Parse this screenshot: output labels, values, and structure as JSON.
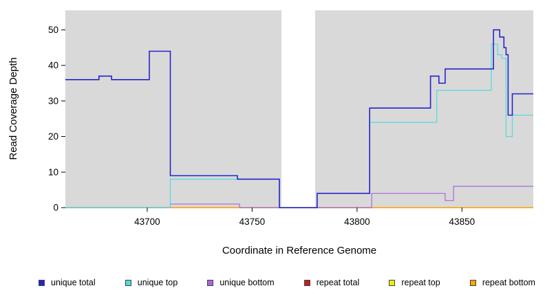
{
  "chart_data": {
    "type": "line",
    "style": "step-after",
    "title": "",
    "xlabel": "Coordinate in Reference Genome",
    "ylabel": "Read Coverage Depth",
    "plot_bg": "#d9d9d9",
    "gap_region": {
      "from": 43764,
      "to": 43780
    },
    "axes": {
      "x": {
        "min": 43661,
        "max": 43884,
        "ticks": [
          43700,
          43750,
          43800,
          43850
        ]
      },
      "y": {
        "min": 0,
        "max": 55.5,
        "ticks": [
          0,
          10,
          20,
          30,
          40,
          50
        ]
      }
    },
    "series": [
      {
        "name": "repeat total",
        "color": "#c22020",
        "width": 1.2,
        "points": [
          [
            43661,
            0
          ],
          [
            43884,
            0
          ]
        ]
      },
      {
        "name": "repeat top",
        "color": "#ebeb12",
        "width": 1.2,
        "points": [
          [
            43661,
            0
          ],
          [
            43884,
            0
          ]
        ]
      },
      {
        "name": "repeat bottom",
        "color": "#ffa500",
        "width": 1.2,
        "points": [
          [
            43661,
            0
          ],
          [
            43884,
            0
          ]
        ]
      },
      {
        "name": "unique bottom",
        "color": "#a668dd",
        "width": 1.2,
        "points": [
          [
            43661,
            0
          ],
          [
            43711,
            1
          ],
          [
            43744,
            0
          ],
          [
            43807,
            4
          ],
          [
            43842,
            2
          ],
          [
            43846,
            6
          ],
          [
            43884,
            6
          ]
        ]
      },
      {
        "name": "unique top",
        "color": "#4fdcdc",
        "width": 1.2,
        "points": [
          [
            43661,
            0
          ],
          [
            43711,
            8
          ],
          [
            43763,
            0
          ],
          [
            43781,
            4
          ],
          [
            43806,
            24
          ],
          [
            43838,
            33
          ],
          [
            43864,
            46
          ],
          [
            43867,
            43
          ],
          [
            43869,
            42
          ],
          [
            43871,
            20
          ],
          [
            43874,
            26
          ],
          [
            43884,
            26
          ]
        ]
      },
      {
        "name": "unique total",
        "color": "#2323cd",
        "width": 1.6,
        "points": [
          [
            43661,
            36
          ],
          [
            43677,
            37
          ],
          [
            43683,
            36
          ],
          [
            43701,
            44
          ],
          [
            43711,
            9
          ],
          [
            43743,
            8
          ],
          [
            43763,
            0
          ],
          [
            43781,
            4
          ],
          [
            43806,
            28
          ],
          [
            43835,
            37
          ],
          [
            43839,
            35
          ],
          [
            43842,
            39
          ],
          [
            43865,
            50
          ],
          [
            43868,
            48
          ],
          [
            43870,
            45
          ],
          [
            43871,
            43
          ],
          [
            43872,
            26
          ],
          [
            43874,
            32
          ],
          [
            43884,
            32
          ]
        ]
      }
    ],
    "legend": [
      {
        "label": "unique total",
        "color": "#2323cd"
      },
      {
        "label": "unique top",
        "color": "#4fdcdc"
      },
      {
        "label": "unique bottom",
        "color": "#a668dd"
      },
      {
        "label": "repeat total",
        "color": "#c22020"
      },
      {
        "label": "repeat top",
        "color": "#ebeb12"
      },
      {
        "label": "repeat bottom",
        "color": "#ffa500"
      }
    ]
  }
}
